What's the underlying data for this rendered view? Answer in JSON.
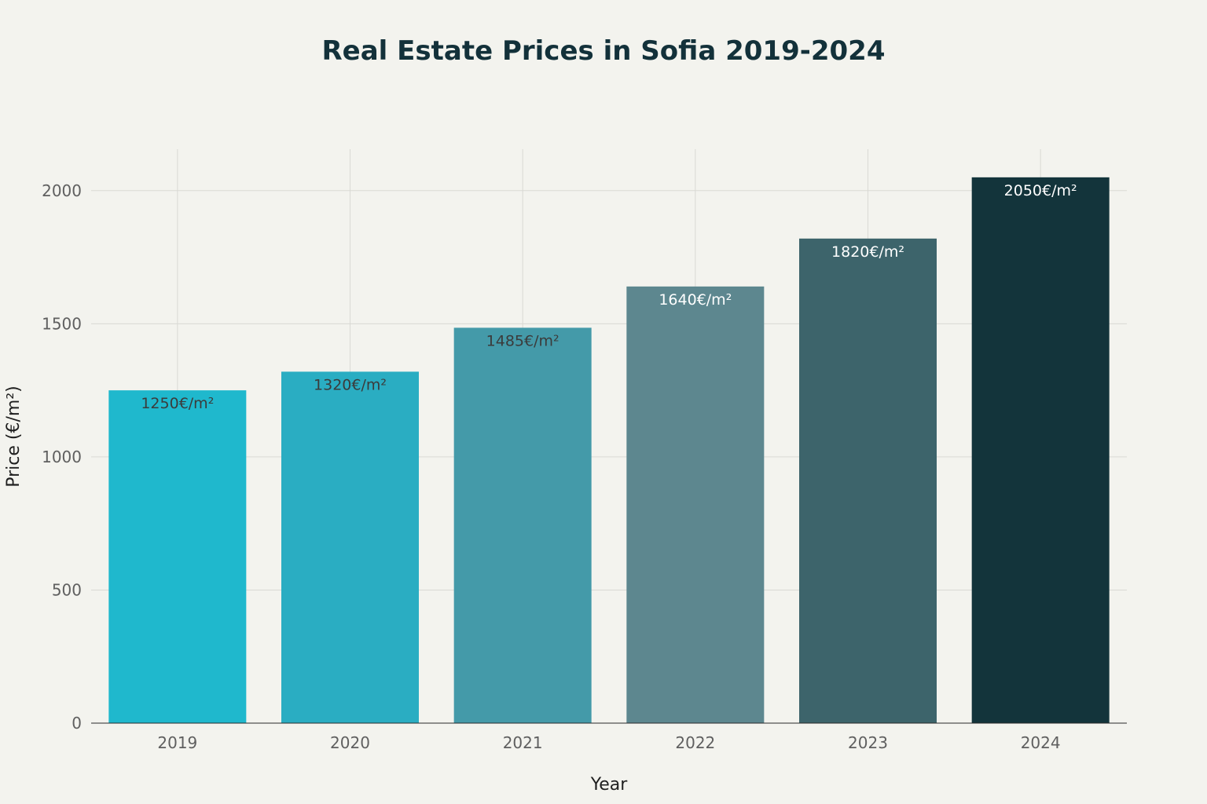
{
  "chart_data": {
    "type": "bar",
    "title": "Real Estate Prices in Sofia 2019-2024",
    "xlabel": "Year",
    "ylabel": "Price (€/m²)",
    "categories": [
      "2019",
      "2020",
      "2021",
      "2022",
      "2023",
      "2024"
    ],
    "values": [
      1250,
      1320,
      1485,
      1640,
      1820,
      2050
    ],
    "data_labels": [
      "1250€/m²",
      "1320€/m²",
      "1485€/m²",
      "1640€/m²",
      "1820€/m²",
      "2050€/m²"
    ],
    "ylim": [
      0,
      2150
    ],
    "yticks": [
      0,
      500,
      1000,
      1500,
      2000
    ],
    "ytick_labels": [
      "0",
      "500",
      "1000",
      "1500",
      "2000"
    ],
    "grid": true,
    "bar_colors": [
      "#1fb8cd",
      "#2aadc2",
      "#449aa9",
      "#5d878f",
      "#3d646b",
      "#13343b"
    ],
    "label_colors": [
      "#3b3b3b",
      "#3b3b3b",
      "#3b3b3b",
      "#ffffff",
      "#ffffff",
      "#ffffff"
    ],
    "background_color": "#f3f3ee"
  }
}
